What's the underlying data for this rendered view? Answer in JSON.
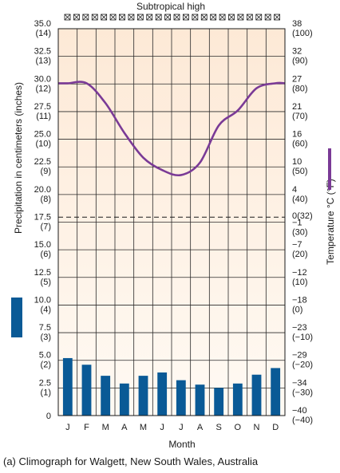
{
  "chart_data": {
    "type": "bar",
    "title": "Subtropical high",
    "caption": "(a) Climograph for Walgett, New South Wales, Australia",
    "xlabel": "Month",
    "ylabel_left": "Precipitation in centimeters (inches)",
    "ylabel_right": "Temperature °C (°F)",
    "categories": [
      "J",
      "F",
      "M",
      "A",
      "M",
      "J",
      "J",
      "A",
      "S",
      "O",
      "N",
      "D"
    ],
    "left_ticks": [
      {
        "value": 35.0,
        "cm": "35.0",
        "in": "(14)"
      },
      {
        "value": 32.5,
        "cm": "32.5",
        "in": "(13)"
      },
      {
        "value": 30.0,
        "cm": "30.0",
        "in": "(12)"
      },
      {
        "value": 27.5,
        "cm": "27.5",
        "in": "(11)"
      },
      {
        "value": 25.0,
        "cm": "25.0",
        "in": "(10)"
      },
      {
        "value": 22.5,
        "cm": "22.5",
        "in": "(9)"
      },
      {
        "value": 20.0,
        "cm": "20.0",
        "in": "(8)"
      },
      {
        "value": 17.5,
        "cm": "17.5",
        "in": "(7)"
      },
      {
        "value": 15.0,
        "cm": "15.0",
        "in": "(6)"
      },
      {
        "value": 12.5,
        "cm": "12.5",
        "in": "(5)"
      },
      {
        "value": 10.0,
        "cm": "10.0",
        "in": "(4)"
      },
      {
        "value": 7.5,
        "cm": "7.5",
        "in": "(3)"
      },
      {
        "value": 5.0,
        "cm": "5.0",
        "in": "(2)"
      },
      {
        "value": 2.5,
        "cm": "2.5",
        "in": "(1)"
      },
      {
        "value": 0,
        "cm": "0",
        "in": ""
      }
    ],
    "right_ticks": [
      {
        "value": 35.0,
        "c": "38",
        "f": "(100)"
      },
      {
        "value": 32.5,
        "c": "32",
        "f": "(90)"
      },
      {
        "value": 30.0,
        "c": "27",
        "f": "(80)"
      },
      {
        "value": 27.5,
        "c": "21",
        "f": "(70)"
      },
      {
        "value": 25.0,
        "c": "16",
        "f": "(60)"
      },
      {
        "value": 22.5,
        "c": "10",
        "f": "(50)"
      },
      {
        "value": 20.0,
        "c": "4",
        "f": "(40)"
      },
      {
        "value": 18.1,
        "c": "0",
        "f": "(32)"
      },
      {
        "value": 17.0,
        "c": "−1",
        "f": "(30)"
      },
      {
        "value": 15.0,
        "c": "−7",
        "f": "(20)"
      },
      {
        "value": 12.5,
        "c": "−12",
        "f": "(10)"
      },
      {
        "value": 10.0,
        "c": "−18",
        "f": "(0)"
      },
      {
        "value": 7.5,
        "c": "−23",
        "f": "(−10)"
      },
      {
        "value": 5.0,
        "c": "−29",
        "f": "(−20)"
      },
      {
        "value": 2.5,
        "c": "−34",
        "f": "(−30)"
      },
      {
        "value": 0,
        "c": "−40",
        "f": "(−40)"
      }
    ],
    "ylim_left_cm": [
      0,
      35
    ],
    "ylim_right_c": [
      -40,
      38
    ],
    "freezing_line_c": 0,
    "series": [
      {
        "kind": "bar",
        "unit": "cm",
        "color": "#0a5a96",
        "values": [
          5.2,
          4.6,
          3.6,
          2.9,
          3.6,
          3.9,
          3.2,
          2.8,
          2.5,
          2.9,
          3.7,
          4.3
        ]
      },
      {
        "kind": "line",
        "unit": "°C",
        "color": "#7a3a96",
        "values": [
          27,
          27,
          23,
          17,
          12,
          9.5,
          8.5,
          11,
          18.5,
          21.5,
          26,
          27
        ]
      }
    ],
    "grid": true,
    "colors": {
      "bar": "#0a5a96",
      "line": "#7a3a96",
      "background_top": "#fff4e8",
      "background_bottom": "#fff9f2"
    }
  }
}
